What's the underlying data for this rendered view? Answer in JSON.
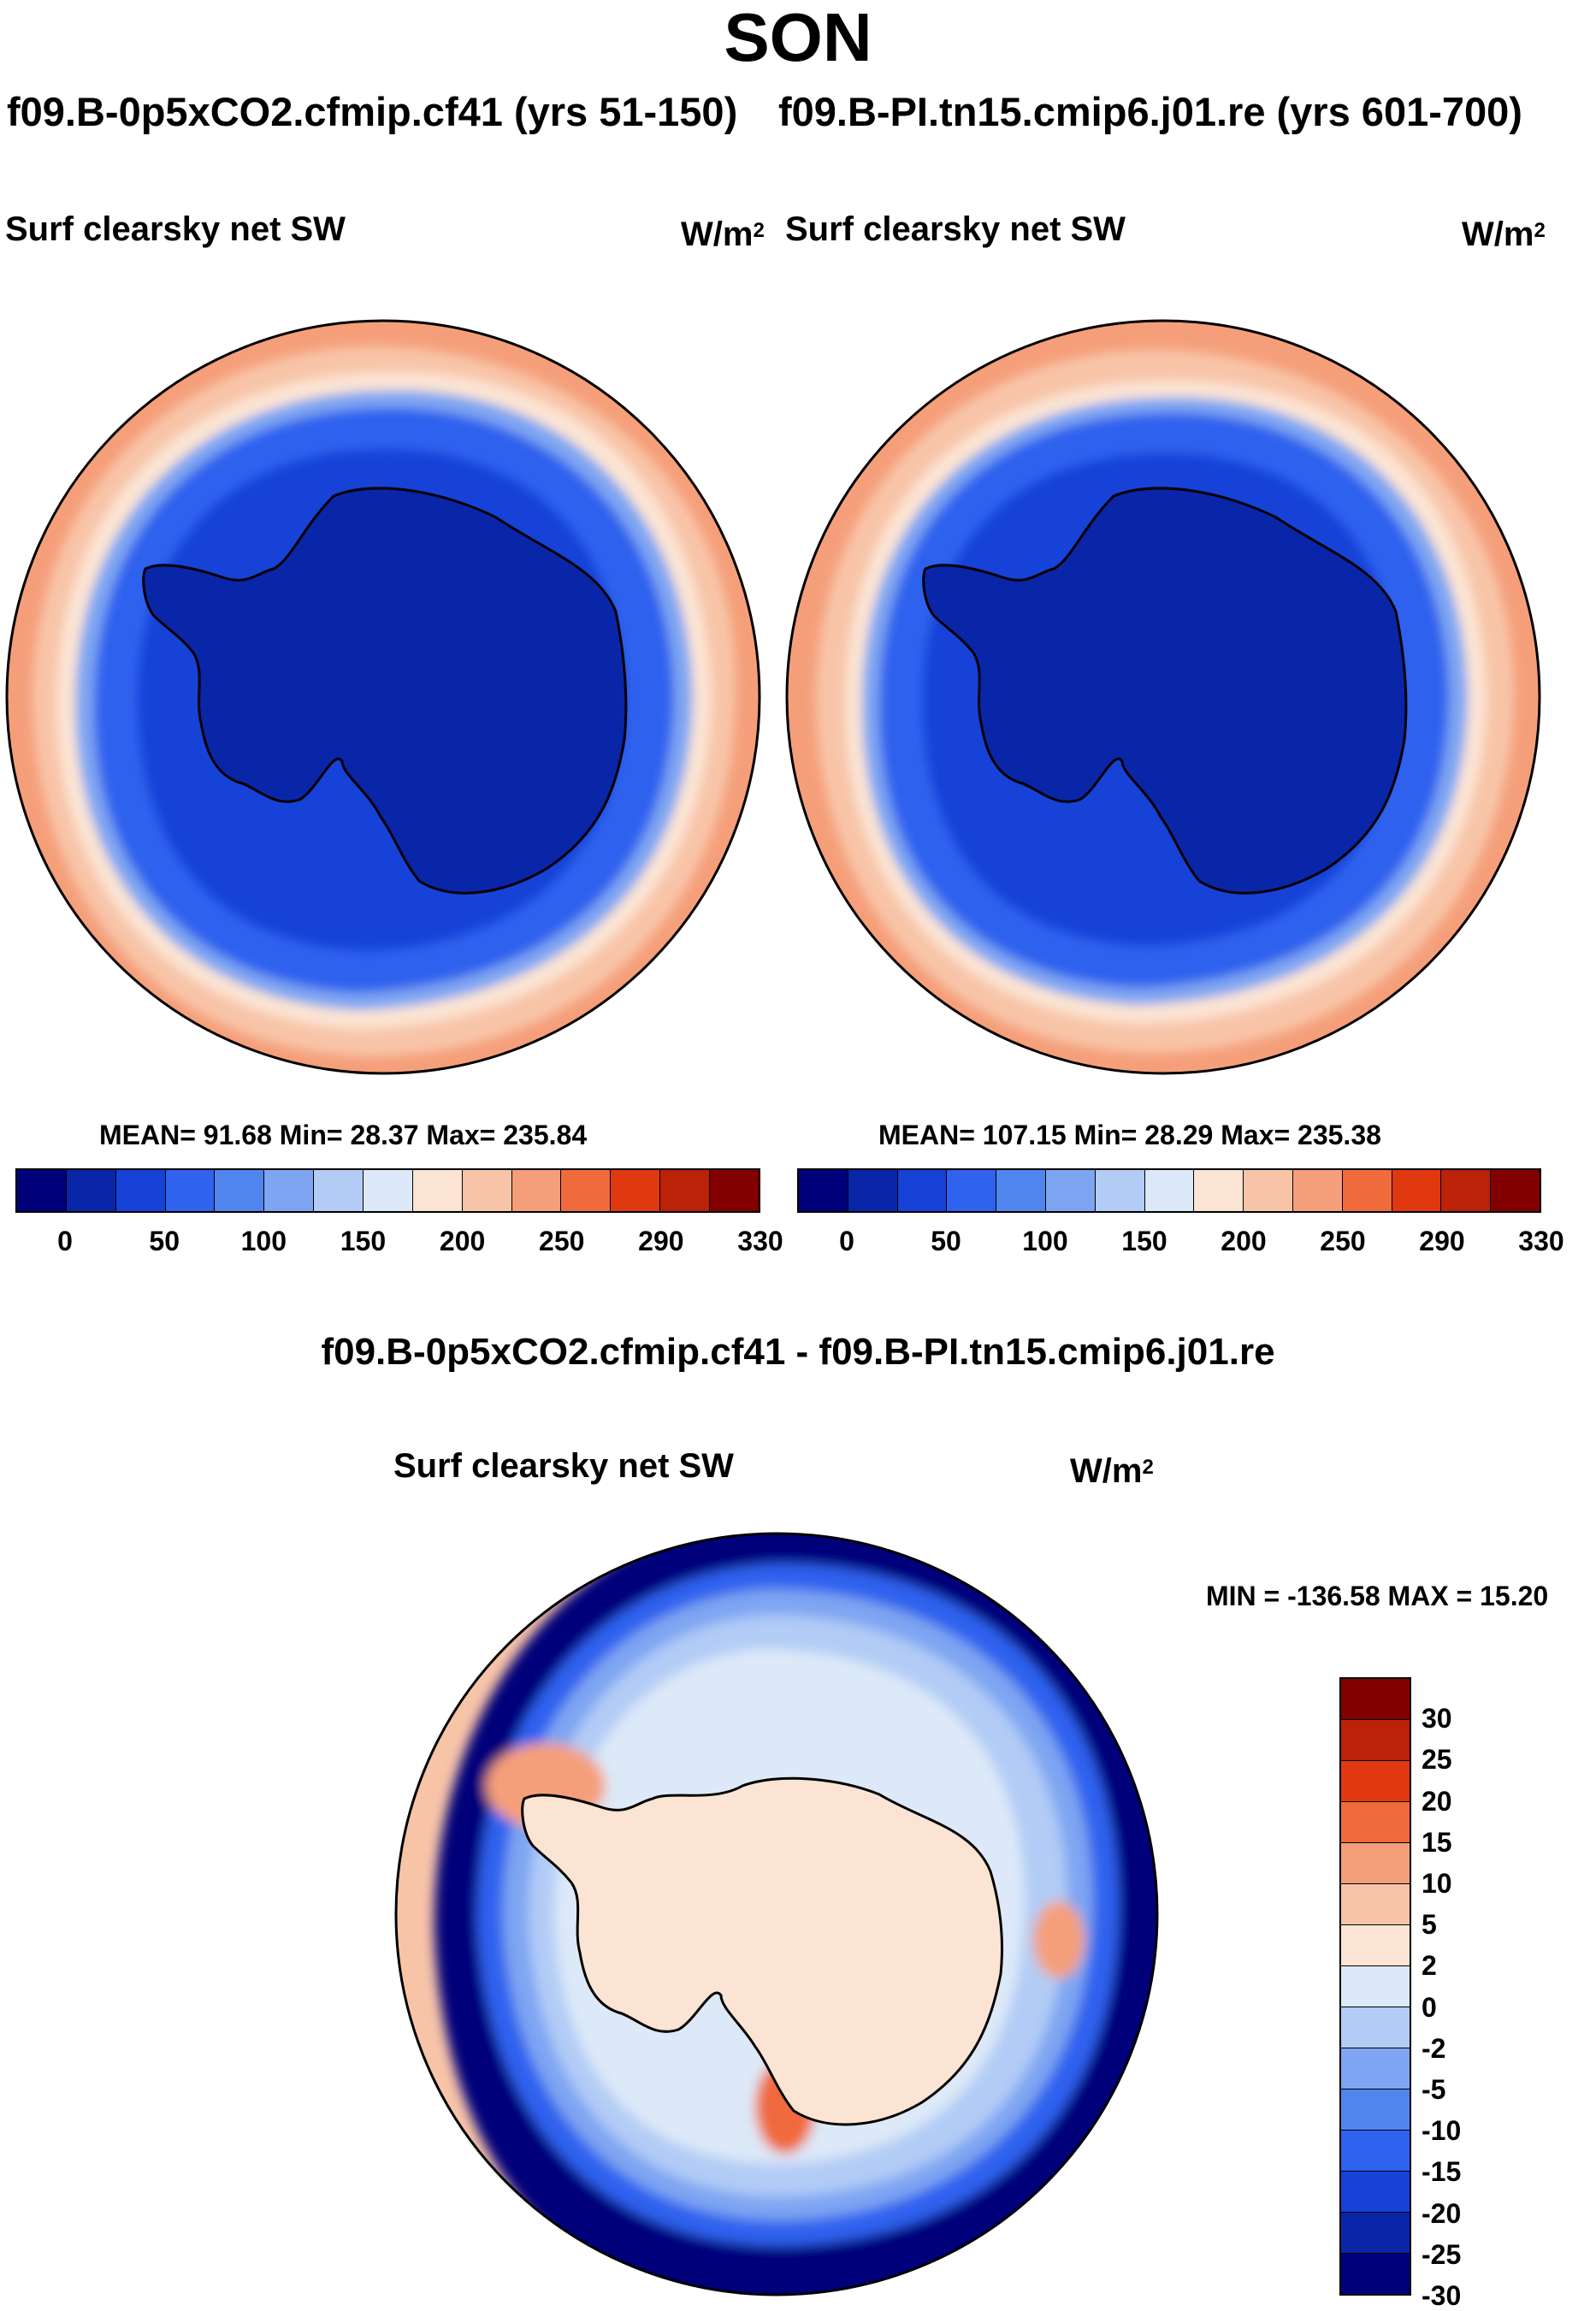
{
  "season": "SON",
  "runs": {
    "left": "f09.B-0p5xCO2.cfmip.cf41 (yrs 51-150)",
    "right": "f09.B-PI.tn15.cmip6.j01.re (yrs 601-700)"
  },
  "variable": "Surf clearsky net SW",
  "units_base": "W/m",
  "units_exp": "2",
  "panels": {
    "left": {
      "stats": "MEAN=  91.68  Min=  28.37  Max= 235.84",
      "mean": 91.68,
      "min": 28.37,
      "max": 235.84
    },
    "right": {
      "stats": "MEAN= 107.15  Min=  28.29  Max= 235.38",
      "mean": 107.15,
      "min": 28.29,
      "max": 235.38
    },
    "diff": {
      "title": "f09.B-0p5xCO2.cfmip.cf41 - f09.B-PI.tn15.cmip6.j01.re",
      "stats": "MIN = -136.58 MAX =  15.20",
      "min": -136.58,
      "max": 15.2
    }
  },
  "colorbar_abs": {
    "colors": [
      "#00007a",
      "#0a26a8",
      "#1642d8",
      "#2f62ee",
      "#5085ee",
      "#7ea5f2",
      "#b2ccf6",
      "#dde9f8",
      "#fbe4d3",
      "#f8c4a8",
      "#f59f7a",
      "#f06b3c",
      "#e0390f",
      "#bb2207",
      "#820000"
    ],
    "labels": [
      "0",
      "50",
      "100",
      "150",
      "200",
      "250",
      "290",
      "330"
    ]
  },
  "colorbar_diff": {
    "colors": [
      "#820000",
      "#bb2207",
      "#e0390f",
      "#f06b3c",
      "#f59f7a",
      "#f8c4a8",
      "#fbe4d3",
      "#dde9f8",
      "#b2ccf6",
      "#7ea5f2",
      "#5085ee",
      "#2f62ee",
      "#1642d8",
      "#0a26a8",
      "#00007a"
    ],
    "labels": [
      "30",
      "25",
      "20",
      "15",
      "10",
      "5",
      "2",
      "0",
      "-2",
      "-5",
      "-10",
      "-15",
      "-20",
      "-25",
      "-30"
    ]
  }
}
